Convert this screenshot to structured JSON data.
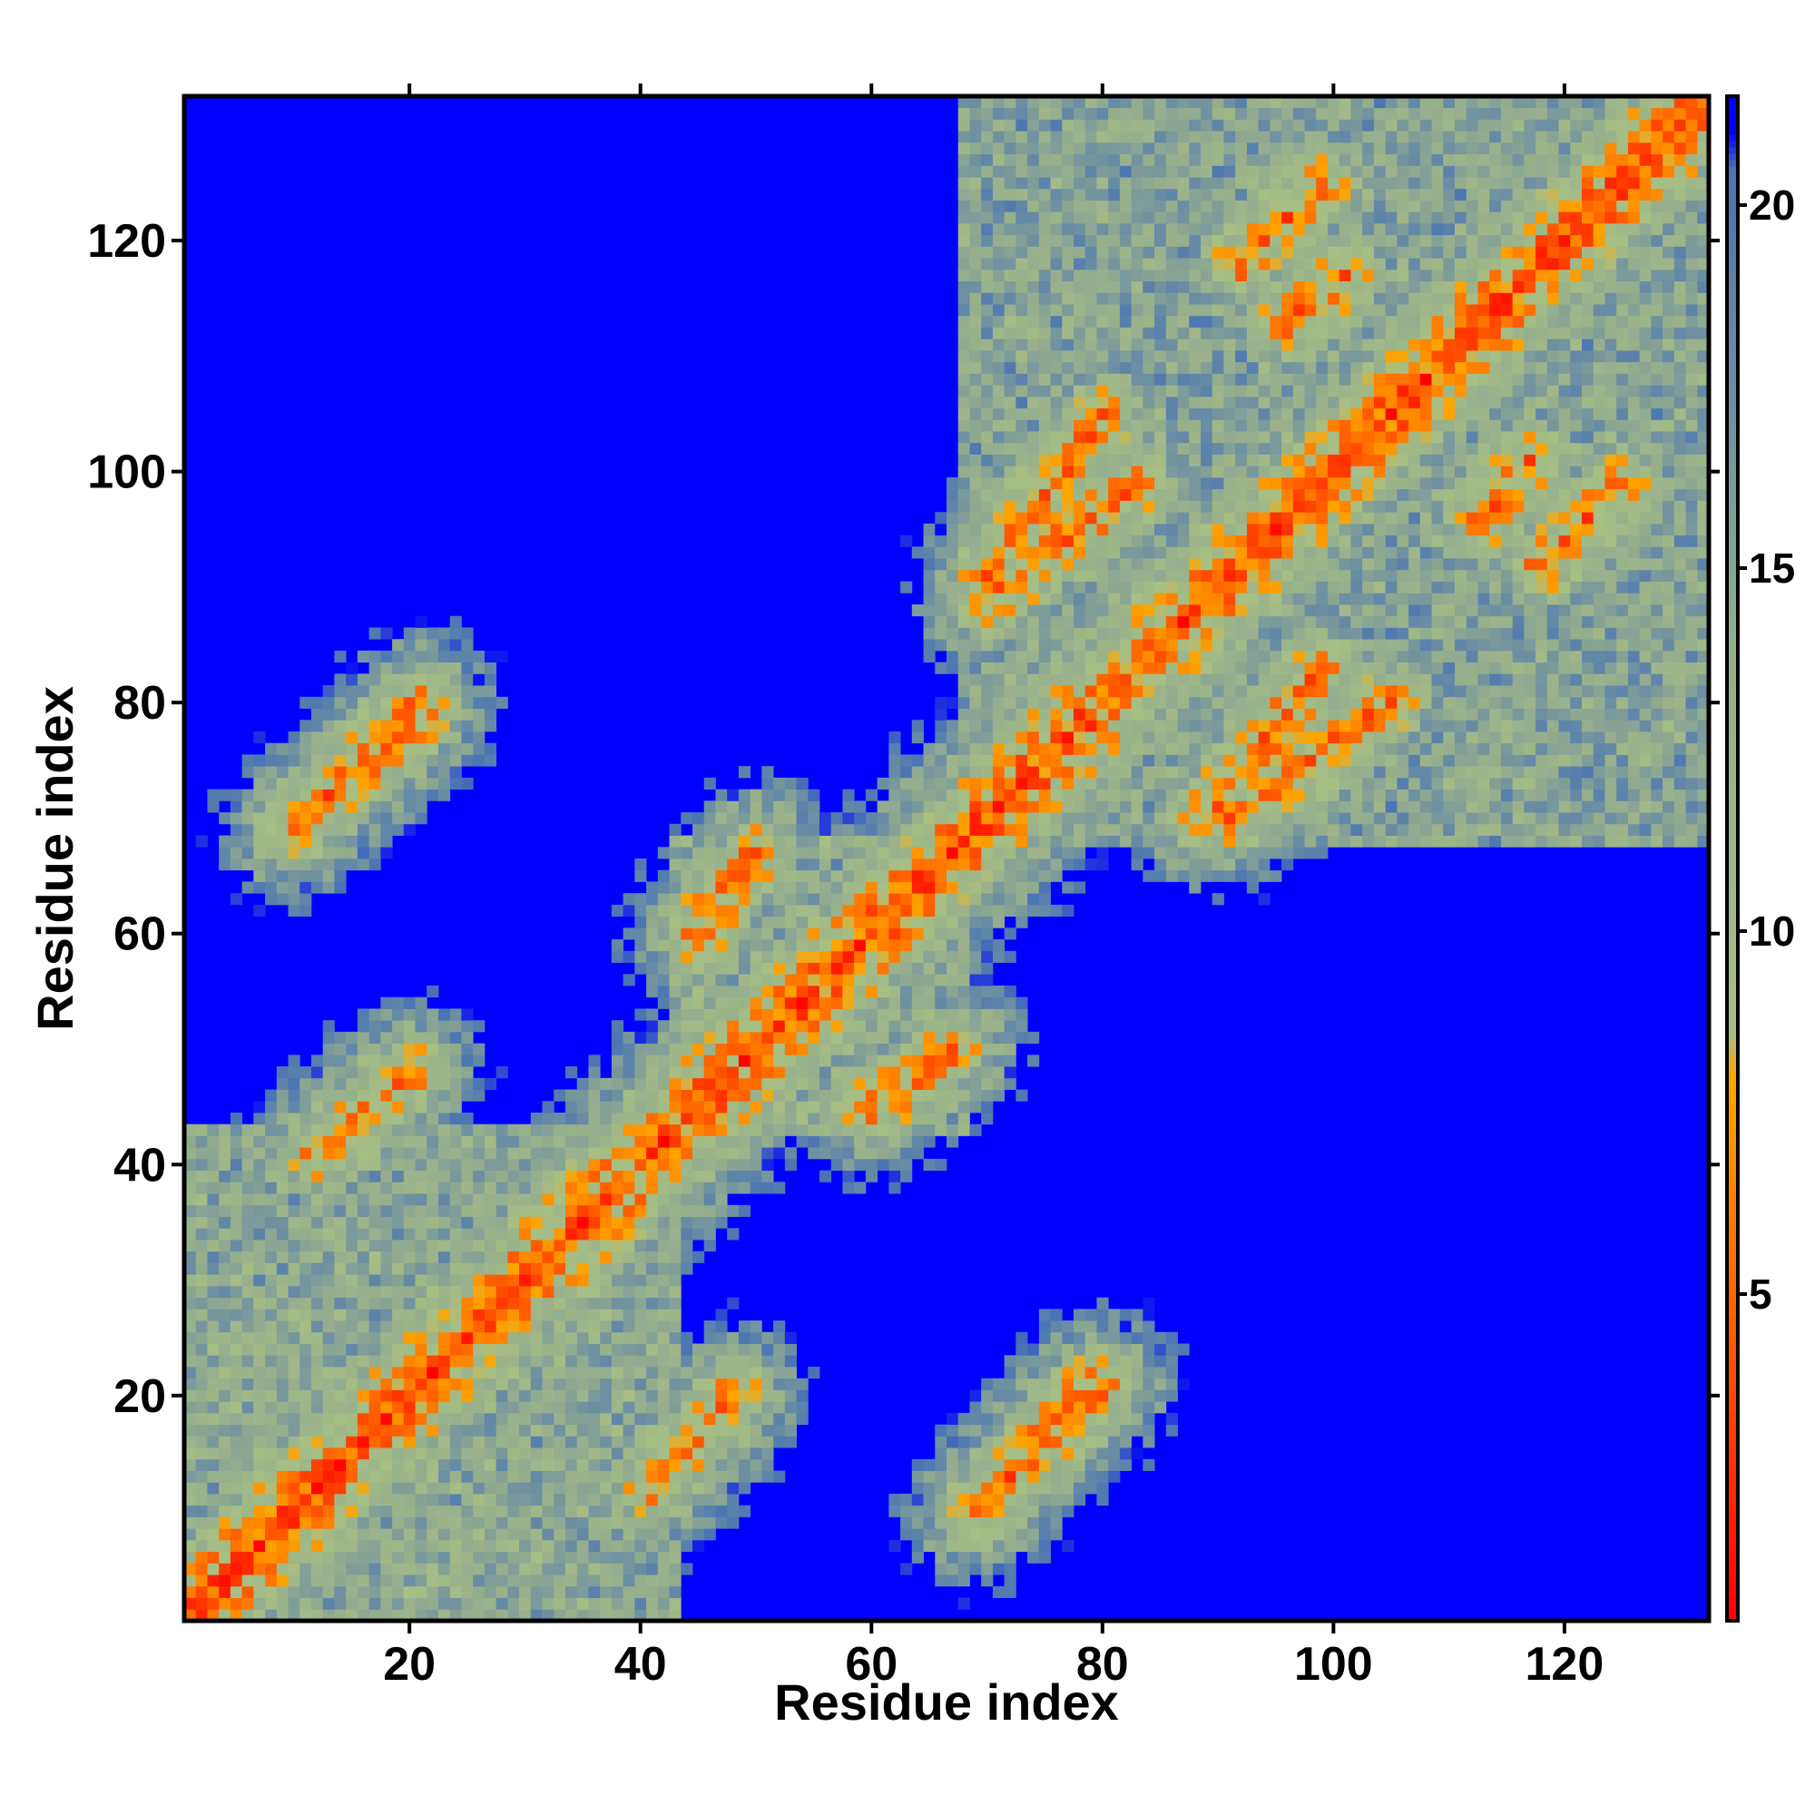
{
  "chart_data": {
    "type": "heatmap",
    "title": "",
    "xlabel": "Residue index",
    "ylabel": "Residue index",
    "n_residues": 132,
    "xlim": [
      1,
      132
    ],
    "ylim": [
      1,
      132
    ],
    "x_ticks": [
      20,
      40,
      60,
      80,
      100,
      120
    ],
    "y_ticks": [
      20,
      40,
      60,
      80,
      100,
      120
    ],
    "colorbar": {
      "ticks": [
        5,
        10,
        15,
        20
      ],
      "range": [
        0.5,
        21.5
      ],
      "stops": [
        {
          "value": 0.5,
          "color": "#ff0000"
        },
        {
          "value": 4.0,
          "color": "#ff5000"
        },
        {
          "value": 8.0,
          "color": "#ffa500"
        },
        {
          "value": 8.6,
          "color": "#a8bf84"
        },
        {
          "value": 14.0,
          "color": "#93ad8e"
        },
        {
          "value": 20.5,
          "color": "#4a74b4"
        },
        {
          "value": 21.0,
          "color": "#0000ff"
        }
      ],
      "saturated_color": "#0000ff",
      "saturated_above": 21
    },
    "contact_segments": [
      {
        "from": [
          21,
          79
        ],
        "to": [
          10,
          69
        ]
      },
      {
        "from": [
          20,
          48
        ],
        "to": [
          12,
          41
        ]
      },
      {
        "from": [
          80,
          21
        ],
        "to": [
          69,
          10
        ]
      },
      {
        "from": [
          80,
          105
        ],
        "to": [
          70,
          91
        ]
      },
      {
        "from": [
          92,
          118
        ],
        "to": [
          99,
          125
        ]
      },
      {
        "from": [
          99,
          83
        ],
        "to": [
          89,
          70
        ]
      },
      {
        "from": [
          67,
          50
        ],
        "to": [
          60,
          45
        ]
      },
      {
        "from": [
          113,
          96
        ],
        "to": [
          117,
          101
        ]
      }
    ],
    "domain_blocks": [
      {
        "residues": [
          1,
          43
        ],
        "level": 12
      },
      {
        "residues": [
          43,
          68
        ],
        "level": 12
      },
      {
        "residues": [
          68,
          132
        ],
        "level": 13
      }
    ]
  }
}
